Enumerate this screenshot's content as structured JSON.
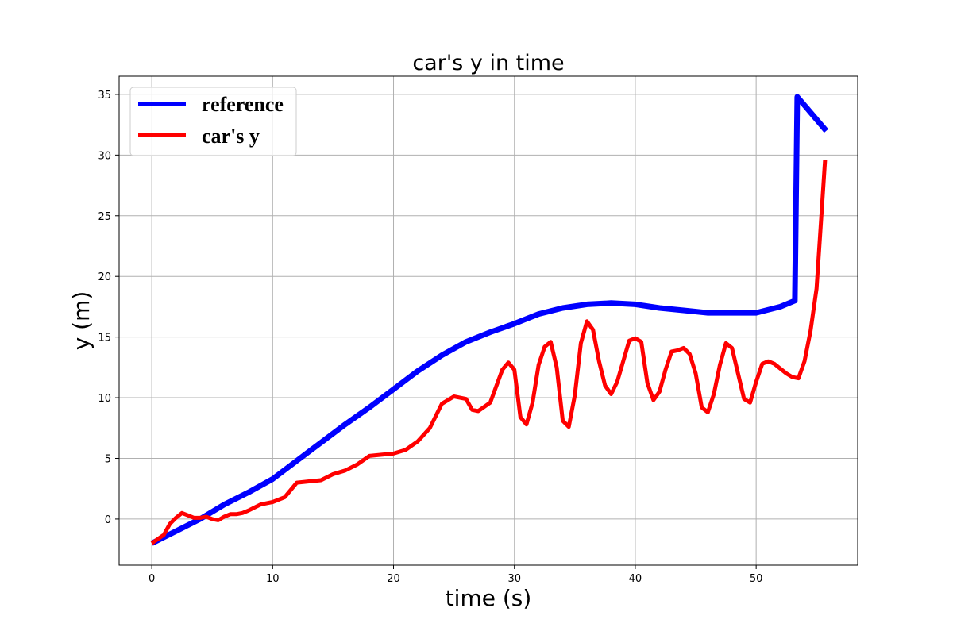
{
  "chart_data": {
    "type": "line",
    "title": "car's y in time",
    "xlabel": "time (s)",
    "ylabel": "y (m)",
    "xlim": [
      -2.7,
      58.4
    ],
    "ylim": [
      -3.8,
      36.5
    ],
    "xticks": [
      0,
      10,
      20,
      30,
      40,
      50
    ],
    "yticks": [
      0,
      5,
      10,
      15,
      20,
      25,
      30,
      35
    ],
    "grid": true,
    "legend_position": "top-left",
    "series": [
      {
        "name": "reference",
        "color": "#0000ff",
        "x": [
          0,
          2,
          4,
          6,
          8,
          10,
          12,
          14,
          16,
          18,
          20,
          22,
          24,
          26,
          28,
          30,
          32,
          34,
          36,
          38,
          40,
          42,
          44,
          46,
          48,
          50,
          52,
          53.2,
          53.4,
          55.8
        ],
        "y": [
          -2.0,
          -1.0,
          0.0,
          1.2,
          2.2,
          3.3,
          4.8,
          6.3,
          7.8,
          9.2,
          10.7,
          12.2,
          13.5,
          14.6,
          15.4,
          16.1,
          16.9,
          17.4,
          17.7,
          17.8,
          17.7,
          17.4,
          17.2,
          17.0,
          17.0,
          17.0,
          17.5,
          18.0,
          34.8,
          32.0
        ]
      },
      {
        "name": "car's y",
        "color": "#ff0000",
        "x": [
          0,
          1,
          1.5,
          2,
          2.5,
          3,
          3.5,
          4,
          4.5,
          5,
          5.5,
          6,
          6.5,
          7,
          7.5,
          8,
          9,
          10,
          11,
          12,
          13,
          14,
          15,
          16,
          17,
          18,
          19,
          20,
          21,
          22,
          23,
          24,
          25,
          26,
          26.5,
          27,
          28,
          29,
          29.5,
          30,
          30.5,
          31,
          31.5,
          32,
          32.5,
          33,
          33.5,
          34,
          34.5,
          35,
          35.5,
          36,
          36.5,
          37,
          37.5,
          38,
          38.5,
          39,
          39.5,
          40,
          40.5,
          41,
          41.5,
          42,
          42.5,
          43,
          43.5,
          44,
          44.5,
          45,
          45.5,
          46,
          46.5,
          47,
          47.5,
          48,
          48.5,
          49,
          49.5,
          50,
          50.5,
          51,
          51.5,
          52,
          52.5,
          53,
          53.5,
          54,
          54.5,
          55,
          55.7
        ],
        "y": [
          -2.0,
          -1.3,
          -0.4,
          0.1,
          0.5,
          0.3,
          0.1,
          0.1,
          0.2,
          0.0,
          -0.1,
          0.2,
          0.4,
          0.4,
          0.5,
          0.7,
          1.2,
          1.4,
          1.8,
          3.0,
          3.1,
          3.2,
          3.7,
          4.0,
          4.5,
          5.2,
          5.3,
          5.4,
          5.7,
          6.4,
          7.5,
          9.5,
          10.1,
          9.9,
          9.0,
          8.9,
          9.6,
          12.3,
          12.9,
          12.3,
          8.4,
          7.8,
          9.6,
          12.7,
          14.2,
          14.6,
          12.5,
          8.1,
          7.6,
          10.2,
          14.5,
          16.3,
          15.6,
          13.0,
          11.0,
          10.3,
          11.3,
          13.0,
          14.7,
          14.9,
          14.6,
          11.2,
          9.8,
          10.5,
          12.3,
          13.8,
          13.9,
          14.1,
          13.6,
          12.0,
          9.2,
          8.8,
          10.3,
          12.7,
          14.5,
          14.1,
          12.0,
          9.9,
          9.6,
          11.3,
          12.8,
          13.0,
          12.8,
          12.4,
          12.0,
          11.7,
          11.6,
          13.0,
          15.5,
          19.0,
          29.6
        ]
      }
    ]
  }
}
